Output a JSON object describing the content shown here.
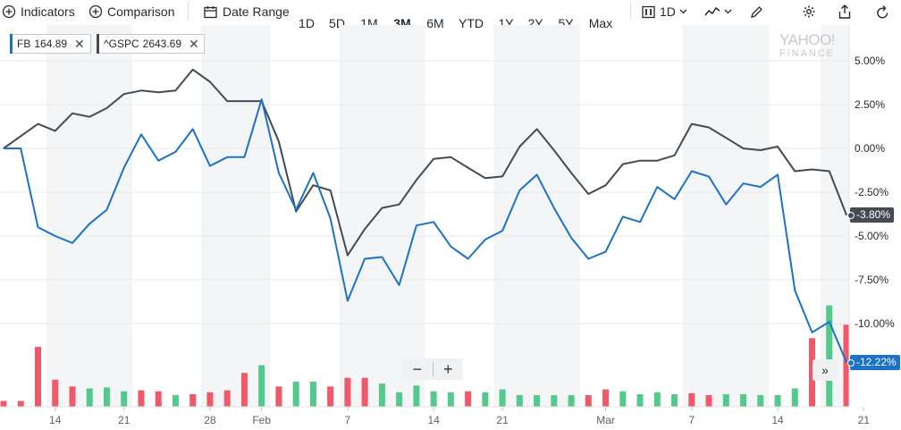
{
  "toolbar": {
    "indicators": "Indicators",
    "comparison": "Comparison",
    "date_range": "Date Range",
    "ranges": [
      "1D",
      "5D",
      "1M",
      "3M",
      "6M",
      "YTD",
      "1Y",
      "2Y",
      "5Y",
      "Max"
    ],
    "active_range": "3M",
    "interval": "1D",
    "accent": "#0f69ff"
  },
  "legend": {
    "items": [
      {
        "symbol": "FB",
        "value": "164.89",
        "color": "#1a73c9"
      },
      {
        "symbol": "^GSPC",
        "value": "2643.69",
        "color": "#444b52"
      }
    ]
  },
  "watermark": {
    "line1": "YAHOO!",
    "line2": "FINANCE"
  },
  "zoom": {
    "minus": "−",
    "plus": "+"
  },
  "nav": {
    "forward": "»"
  },
  "chart_data": {
    "type": "line",
    "ylim": [
      -12.5,
      6.5
    ],
    "yticks": [
      "5.00%",
      "2.50%",
      "0.00%",
      "-2.50%",
      "-5.00%",
      "-7.50%",
      "-10.00%"
    ],
    "ytick_values": [
      5,
      2.5,
      0,
      -2.5,
      -5,
      -7.5,
      -10
    ],
    "x_ticks": [
      {
        "label": "14",
        "i": 3
      },
      {
        "label": "21",
        "i": 7
      },
      {
        "label": "28",
        "i": 12
      },
      {
        "label": "Feb",
        "i": 15
      },
      {
        "label": "7",
        "i": 20
      },
      {
        "label": "14",
        "i": 25
      },
      {
        "label": "21",
        "i": 29
      },
      {
        "label": "Mar",
        "i": 35
      },
      {
        "label": "7",
        "i": 40
      },
      {
        "label": "14",
        "i": 45
      },
      {
        "label": "21",
        "i": 50
      }
    ],
    "shaded_bands": [
      [
        3,
        7
      ],
      [
        12,
        15
      ],
      [
        20,
        24
      ],
      [
        29,
        33
      ],
      [
        40,
        44
      ],
      [
        48,
        50
      ]
    ],
    "series": [
      {
        "name": "FB",
        "color": "#1a73c9",
        "last_label": "-12.22%",
        "values": [
          0.0,
          0.0,
          -4.5,
          -5.0,
          -5.4,
          -4.3,
          -3.5,
          -1.1,
          0.8,
          -0.7,
          -0.2,
          1.1,
          -1.0,
          -0.5,
          -0.5,
          2.8,
          -1.4,
          -3.5,
          -1.4,
          -4.0,
          -8.7,
          -6.3,
          -6.2,
          -7.8,
          -4.4,
          -4.2,
          -5.6,
          -6.3,
          -5.2,
          -4.7,
          -2.4,
          -1.5,
          -3.4,
          -5.1,
          -6.3,
          -5.9,
          -3.9,
          -4.2,
          -2.2,
          -2.9,
          -1.3,
          -1.6,
          -3.2,
          -2.0,
          -2.2,
          -1.5,
          -8.1,
          -10.5,
          -9.9,
          -12.2
        ]
      },
      {
        "name": "^GSPC",
        "color": "#444b52",
        "last_label": "-3.80%",
        "values": [
          0.0,
          0.7,
          1.4,
          1.0,
          2.0,
          1.8,
          2.3,
          3.1,
          3.3,
          3.2,
          3.3,
          4.5,
          3.8,
          2.7,
          2.7,
          2.7,
          0.4,
          -3.6,
          -2.1,
          -2.4,
          -6.1,
          -4.6,
          -3.4,
          -3.2,
          -1.8,
          -0.6,
          -0.5,
          -1.1,
          -1.7,
          -1.6,
          0.1,
          1.1,
          -0.1,
          -1.4,
          -2.6,
          -2.1,
          -0.9,
          -0.7,
          -0.7,
          -0.4,
          1.4,
          1.2,
          0.6,
          0.0,
          -0.1,
          0.1,
          -1.3,
          -1.2,
          -1.3,
          -3.8
        ]
      }
    ],
    "volume": {
      "up_color": "#53c98b",
      "down_color": "#f0596a",
      "values": [
        0.06,
        0.06,
        0.62,
        0.28,
        0.21,
        0.19,
        0.2,
        0.16,
        0.17,
        0.16,
        0.12,
        0.13,
        0.15,
        0.17,
        0.35,
        0.43,
        0.21,
        0.26,
        0.26,
        0.21,
        0.3,
        0.3,
        0.24,
        0.15,
        0.22,
        0.16,
        0.15,
        0.16,
        0.15,
        0.18,
        0.12,
        0.12,
        0.12,
        0.12,
        0.12,
        0.18,
        0.16,
        0.13,
        0.15,
        0.13,
        0.14,
        0.12,
        0.13,
        0.13,
        0.12,
        0.12,
        0.19,
        0.71,
        1.05,
        0.85
      ],
      "up": [
        false,
        false,
        false,
        false,
        false,
        true,
        true,
        true,
        false,
        false,
        true,
        false,
        false,
        false,
        false,
        true,
        false,
        true,
        true,
        false,
        false,
        false,
        true,
        true,
        true,
        true,
        true,
        false,
        true,
        true,
        true,
        true,
        true,
        true,
        false,
        false,
        true,
        true,
        true,
        true,
        false,
        false,
        true,
        true,
        true,
        true,
        true,
        false,
        true,
        false
      ]
    }
  }
}
